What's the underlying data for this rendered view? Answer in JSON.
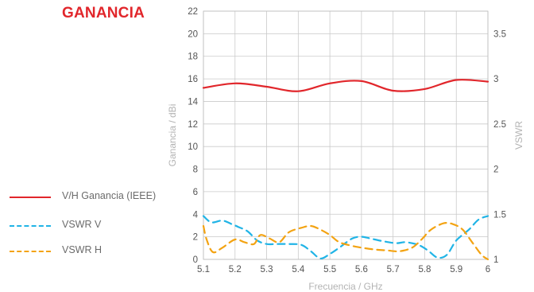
{
  "title": "GANANCIA",
  "legend": [
    {
      "label": "V/H Ganancia (IEEE)",
      "color": "#e1262b",
      "dash": "solid"
    },
    {
      "label": "VSWR V",
      "color": "#21b4e6",
      "dash": "dashed"
    },
    {
      "label": "VSWR H",
      "color": "#f3a312",
      "dash": "dashed"
    }
  ],
  "chart_data": {
    "type": "line",
    "xlabel": "Frecuencia / GHz",
    "ylabel": "Ganancia / dBi",
    "y2label": "VSWR",
    "xlim": [
      5.1,
      6.0
    ],
    "ylim": [
      0,
      22
    ],
    "y2lim": [
      1.0,
      3.75
    ],
    "x_ticks": [
      "5.1",
      "5.2",
      "5.3",
      "5.4",
      "5.5",
      "5.6",
      "5.7",
      "5.8",
      "5.9",
      "6"
    ],
    "y_ticks": [
      "0",
      "2",
      "4",
      "6",
      "8",
      "10",
      "12",
      "14",
      "16",
      "18",
      "20",
      "22"
    ],
    "y2_ticks": [
      "1",
      "1.5",
      "2",
      "2.5",
      "3",
      "3.5"
    ],
    "grid": true,
    "series": [
      {
        "name": "V/H Ganancia (IEEE)",
        "axis": "left",
        "color": "#e1262b",
        "x": [
          5.1,
          5.2,
          5.3,
          5.4,
          5.5,
          5.6,
          5.7,
          5.8,
          5.9,
          6.0
        ],
        "y": [
          15.2,
          15.6,
          15.3,
          14.9,
          15.6,
          15.8,
          14.95,
          15.1,
          15.9,
          15.75
        ]
      },
      {
        "name": "VSWR V",
        "axis": "right",
        "color": "#21b4e6",
        "x": [
          5.1,
          5.125,
          5.16,
          5.19,
          5.21,
          5.24,
          5.27,
          5.3,
          5.33,
          5.37,
          5.41,
          5.44,
          5.47,
          5.5,
          5.53,
          5.57,
          5.6,
          5.63,
          5.67,
          5.71,
          5.74,
          5.78,
          5.81,
          5.84,
          5.87,
          5.9,
          5.94,
          5.97,
          6.0
        ],
        "y": [
          1.48,
          1.41,
          1.43,
          1.39,
          1.36,
          1.31,
          1.21,
          1.17,
          1.17,
          1.17,
          1.16,
          1.09,
          1.01,
          1.06,
          1.13,
          1.23,
          1.25,
          1.23,
          1.2,
          1.18,
          1.19,
          1.16,
          1.1,
          1.02,
          1.05,
          1.21,
          1.33,
          1.44,
          1.48
        ]
      },
      {
        "name": "VSWR H",
        "axis": "right",
        "color": "#f3a312",
        "x": [
          5.1,
          5.11,
          5.13,
          5.16,
          5.2,
          5.23,
          5.26,
          5.28,
          5.31,
          5.34,
          5.37,
          5.41,
          5.44,
          5.47,
          5.5,
          5.53,
          5.57,
          5.6,
          5.64,
          5.68,
          5.72,
          5.76,
          5.79,
          5.82,
          5.86,
          5.89,
          5.92,
          5.95,
          5.98,
          6.0
        ],
        "y": [
          1.37,
          1.22,
          1.08,
          1.13,
          1.22,
          1.19,
          1.17,
          1.27,
          1.23,
          1.19,
          1.3,
          1.35,
          1.37,
          1.33,
          1.27,
          1.19,
          1.15,
          1.13,
          1.11,
          1.1,
          1.09,
          1.13,
          1.22,
          1.33,
          1.4,
          1.39,
          1.33,
          1.19,
          1.05,
          1.0
        ]
      }
    ]
  }
}
